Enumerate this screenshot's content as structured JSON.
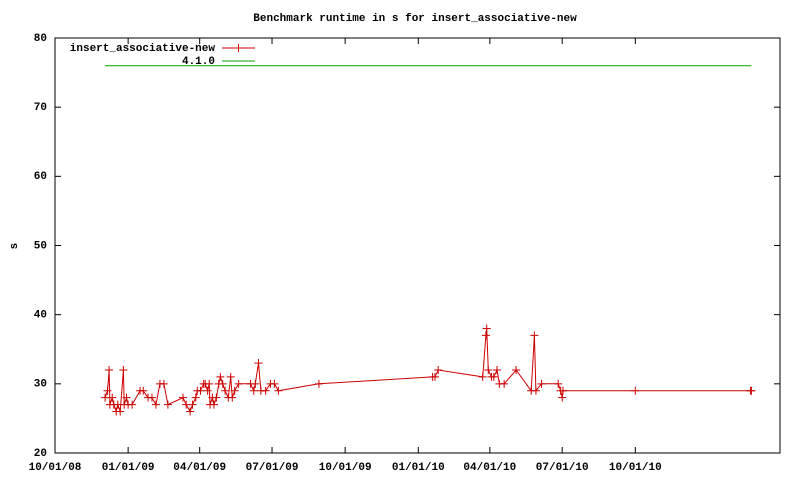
{
  "chart_data": {
    "type": "line",
    "title": "Benchmark runtime in s for insert_associative-new",
    "y_label": "s",
    "xlim": [
      "2008-10-01",
      "2011-04-01"
    ],
    "xticks": [
      {
        "value": "2008-10-01",
        "label": "10/01/08"
      },
      {
        "value": "2009-01-01",
        "label": "01/01/09"
      },
      {
        "value": "2009-04-01",
        "label": "04/01/09"
      },
      {
        "value": "2009-07-01",
        "label": "07/01/09"
      },
      {
        "value": "2009-10-01",
        "label": "10/01/09"
      },
      {
        "value": "2010-01-01",
        "label": "01/01/10"
      },
      {
        "value": "2010-04-01",
        "label": "04/01/10"
      },
      {
        "value": "2010-07-01",
        "label": "07/01/10"
      },
      {
        "value": "2010-10-01",
        "label": "10/01/10"
      }
    ],
    "ylim": [
      20,
      80
    ],
    "yticks": [
      20,
      30,
      40,
      50,
      60,
      70,
      80
    ],
    "legend": "top-left",
    "grid": false,
    "series": [
      {
        "name": "insert_associative-new",
        "color": "#cc0000",
        "markers": true,
        "x": [
          "2008-12-03",
          "2008-12-06",
          "2008-12-08",
          "2008-12-09",
          "2008-12-12",
          "2008-12-14",
          "2008-12-17",
          "2008-12-19",
          "2008-12-22",
          "2008-12-26",
          "2008-12-27",
          "2008-12-30",
          "2009-01-01",
          "2009-01-06",
          "2009-01-16",
          "2009-01-20",
          "2009-01-26",
          "2009-01-31",
          "2009-02-05",
          "2009-02-10",
          "2009-02-15",
          "2009-02-20",
          "2009-03-11",
          "2009-03-15",
          "2009-03-20",
          "2009-03-23",
          "2009-03-27",
          "2009-03-29",
          "2009-04-02",
          "2009-04-06",
          "2009-04-08",
          "2009-04-11",
          "2009-04-13",
          "2009-04-14",
          "2009-04-17",
          "2009-04-19",
          "2009-04-22",
          "2009-04-25",
          "2009-04-27",
          "2009-04-30",
          "2009-05-03",
          "2009-05-07",
          "2009-05-10",
          "2009-05-12",
          "2009-05-15",
          "2009-05-20",
          "2009-06-04",
          "2009-06-08",
          "2009-06-10",
          "2009-06-14",
          "2009-06-17",
          "2009-06-23",
          "2009-06-29",
          "2009-07-04",
          "2009-07-09",
          "2009-08-29",
          "2010-01-19",
          "2010-01-22",
          "2010-01-26",
          "2010-03-23",
          "2010-03-27",
          "2010-03-28",
          "2010-03-30",
          "2010-04-03",
          "2010-04-06",
          "2010-04-10",
          "2010-04-13",
          "2010-04-19",
          "2010-05-04",
          "2010-05-23",
          "2010-05-27",
          "2010-05-29",
          "2010-06-05",
          "2010-06-26",
          "2010-06-29",
          "2010-07-01",
          "2010-07-02",
          "2010-10-01",
          "2011-02-23",
          "2011-02-24"
        ],
        "values": [
          28,
          29,
          32,
          27,
          28,
          27,
          26,
          27,
          26,
          32,
          27,
          28,
          27,
          27,
          29,
          29,
          28,
          28,
          27,
          30,
          30,
          27,
          28,
          27,
          26,
          27,
          28,
          29,
          29,
          30,
          30,
          29,
          30,
          27,
          28,
          27,
          28,
          30,
          31,
          30,
          29,
          28,
          31,
          28,
          29,
          30,
          30,
          29,
          30,
          33,
          29,
          29,
          30,
          30,
          29,
          30,
          31,
          31,
          32,
          31,
          37,
          38,
          32,
          31,
          31,
          32,
          30,
          30,
          32,
          29,
          37,
          29,
          30,
          30,
          29,
          28,
          29,
          29,
          29,
          29
        ]
      },
      {
        "name": "4.1.0",
        "color": "#00a000",
        "markers": false,
        "x": [
          "2008-12-03",
          "2011-02-24"
        ],
        "values": [
          76,
          76
        ]
      }
    ]
  }
}
